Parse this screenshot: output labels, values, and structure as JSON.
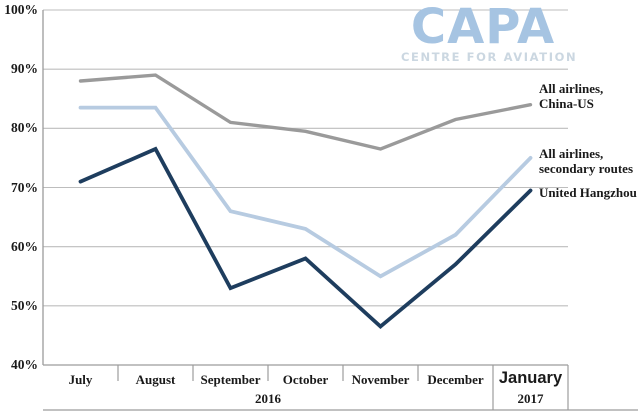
{
  "logo": {
    "title": "CAPA",
    "subtitle": "CENTRE FOR AVIATION",
    "title_color": "#a6c4e2",
    "subtitle_color": "#cbd7e1"
  },
  "chart_data": {
    "type": "line",
    "title": "",
    "categories": [
      "July",
      "August",
      "September",
      "October",
      "November",
      "December",
      "January"
    ],
    "highlight_category": "January",
    "year_labels": [
      {
        "label": "2016",
        "from": "July",
        "to": "December"
      },
      {
        "label": "2017",
        "from": "January",
        "to": "January"
      }
    ],
    "ylim": [
      40,
      100
    ],
    "ytick_step": 10,
    "ytick_labels": [
      "40%",
      "50%",
      "60%",
      "70%",
      "80%",
      "90%",
      "100%"
    ],
    "grid": true,
    "legend_position": "right-of-line-ends",
    "series": [
      {
        "name": "All airlines, China-US",
        "label_lines": [
          "All airlines,",
          "China-US"
        ],
        "color": "#9a9a9a",
        "values": [
          88,
          89,
          81,
          79.5,
          76.5,
          81.5,
          84
        ]
      },
      {
        "name": "All airlines, secondary routes",
        "label_lines": [
          "All airlines,",
          "secondary routes"
        ],
        "color": "#b7cbe1",
        "values": [
          83.5,
          83.5,
          66,
          63,
          55,
          62,
          75
        ]
      },
      {
        "name": "United Hangzhou",
        "label_lines": [
          "United Hangzhou"
        ],
        "color": "#1e3d5e",
        "values": [
          71,
          76.5,
          53,
          58,
          46.5,
          57,
          69.5
        ]
      }
    ],
    "axis_color": "#9c9c9c",
    "grid_color": "#bdbdbd",
    "text_color": "#1a1a1a"
  }
}
